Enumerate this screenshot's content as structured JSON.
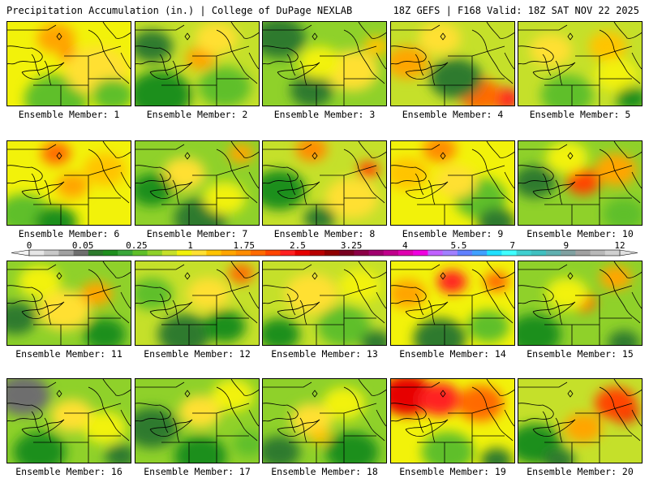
{
  "header": {
    "title_left": "Precipitation Accumulation (in.) | College of DuPage NEXLAB",
    "title_right": "18Z GEFS | F168 Valid: 18Z SAT NOV 22 2025"
  },
  "colorbar": {
    "labels": [
      "0",
      "0.05",
      "0.25",
      "1",
      "1.75",
      "2.5",
      "3.25",
      "4",
      "5.5",
      "7",
      "9",
      "12"
    ],
    "colors": [
      "#e6e6e6",
      "#c8c8c8",
      "#a0a0a0",
      "#6e6e6e",
      "#2d7a2d",
      "#1f8f1f",
      "#3aa63a",
      "#5fbf2a",
      "#8fd12a",
      "#c5e02a",
      "#f2f20a",
      "#ffe033",
      "#ffc400",
      "#ffa500",
      "#ff8c00",
      "#ff6a00",
      "#ff4500",
      "#ff2020",
      "#e60000",
      "#b80000",
      "#900000",
      "#780020",
      "#8b0046",
      "#a0006e",
      "#c0008c",
      "#e000b0",
      "#f000e0",
      "#c060ff",
      "#a080ff",
      "#6080ff",
      "#40a0ff",
      "#20e0ff",
      "#40ffff",
      "#40d0d0",
      "#40c0c0",
      "#60b0b0",
      "#80a0a0",
      "#a0a0a0",
      "#b8b8b8",
      "#d0d0d0"
    ]
  },
  "members": [
    {
      "label": "Ensemble Member: 1",
      "base": "#f2f20a",
      "blobs": [
        [
          "#ffa500",
          60,
          20,
          18
        ],
        [
          "#ff8c00",
          78,
          42,
          10
        ],
        [
          "#5fbf2a",
          60,
          95,
          30
        ],
        [
          "#ffe033",
          110,
          60,
          30
        ],
        [
          "#5fbf2a",
          130,
          90,
          20
        ]
      ]
    },
    {
      "label": "Ensemble Member: 2",
      "base": "#c5e02a",
      "blobs": [
        [
          "#ffa500",
          80,
          45,
          14
        ],
        [
          "#ffe033",
          100,
          20,
          20
        ],
        [
          "#1f8f1f",
          30,
          90,
          30
        ],
        [
          "#5fbf2a",
          110,
          80,
          25
        ],
        [
          "#2d7a2d",
          20,
          30,
          20
        ]
      ]
    },
    {
      "label": "Ensemble Member: 3",
      "base": "#8fd12a",
      "blobs": [
        [
          "#2d7a2d",
          20,
          20,
          25
        ],
        [
          "#2d7a2d",
          60,
          85,
          20
        ],
        [
          "#ffe033",
          110,
          60,
          25
        ],
        [
          "#f2f20a",
          70,
          50,
          20
        ],
        [
          "#ffc400",
          140,
          30,
          12
        ]
      ]
    },
    {
      "label": "Ensemble Member: 4",
      "base": "#c5e02a",
      "blobs": [
        [
          "#ff2020",
          140,
          95,
          14
        ],
        [
          "#ff6a00",
          110,
          90,
          20
        ],
        [
          "#2d7a2d",
          80,
          70,
          25
        ],
        [
          "#ffa500",
          20,
          50,
          20
        ],
        [
          "#ffe033",
          60,
          20,
          20
        ]
      ]
    },
    {
      "label": "Ensemble Member: 5",
      "base": "#c5e02a",
      "blobs": [
        [
          "#ffe033",
          40,
          35,
          20
        ],
        [
          "#ffc400",
          110,
          30,
          18
        ],
        [
          "#5fbf2a",
          60,
          90,
          25
        ],
        [
          "#f2f20a",
          120,
          65,
          20
        ],
        [
          "#1f8f1f",
          140,
          95,
          15
        ]
      ]
    },
    {
      "label": "Ensemble Member: 6",
      "base": "#f2f20a",
      "blobs": [
        [
          "#ff6a00",
          60,
          15,
          14
        ],
        [
          "#ffa500",
          80,
          55,
          15
        ],
        [
          "#5fbf2a",
          20,
          90,
          25
        ],
        [
          "#ffc400",
          120,
          35,
          20
        ],
        [
          "#1f8f1f",
          60,
          100,
          20
        ]
      ]
    },
    {
      "label": "Ensemble Member: 7",
      "base": "#8fd12a",
      "blobs": [
        [
          "#ffe033",
          60,
          40,
          20
        ],
        [
          "#ffa500",
          130,
          15,
          12
        ],
        [
          "#1f8f1f",
          20,
          60,
          20
        ],
        [
          "#2d7a2d",
          80,
          95,
          25
        ],
        [
          "#f2f20a",
          110,
          70,
          20
        ]
      ]
    },
    {
      "label": "Ensemble Member: 8",
      "base": "#c5e02a",
      "blobs": [
        [
          "#ff8c00",
          60,
          10,
          15
        ],
        [
          "#ff4500",
          130,
          35,
          10
        ],
        [
          "#1f8f1f",
          20,
          60,
          25
        ],
        [
          "#ffe033",
          110,
          70,
          25
        ],
        [
          "#2d7a2d",
          70,
          95,
          15
        ]
      ]
    },
    {
      "label": "Ensemble Member: 9",
      "base": "#f2f20a",
      "blobs": [
        [
          "#ff8c00",
          60,
          10,
          16
        ],
        [
          "#ffc400",
          20,
          40,
          20
        ],
        [
          "#5fbf2a",
          110,
          70,
          25
        ],
        [
          "#2d7a2d",
          130,
          100,
          18
        ],
        [
          "#ffe033",
          80,
          50,
          20
        ]
      ]
    },
    {
      "label": "Ensemble Member: 10",
      "base": "#8fd12a",
      "blobs": [
        [
          "#ff4500",
          80,
          50,
          16
        ],
        [
          "#ffa500",
          120,
          35,
          20
        ],
        [
          "#2d7a2d",
          20,
          50,
          20
        ],
        [
          "#f2f20a",
          60,
          20,
          20
        ],
        [
          "#5fbf2a",
          130,
          90,
          20
        ]
      ]
    },
    {
      "label": "Ensemble Member: 11",
      "base": "#8fd12a",
      "blobs": [
        [
          "#2d7a2d",
          10,
          70,
          20
        ],
        [
          "#ffe033",
          70,
          60,
          25
        ],
        [
          "#ffa500",
          110,
          40,
          15
        ],
        [
          "#1f8f1f",
          120,
          90,
          20
        ],
        [
          "#f2f20a",
          40,
          25,
          20
        ]
      ]
    },
    {
      "label": "Ensemble Member: 12",
      "base": "#c5e02a",
      "blobs": [
        [
          "#ff6a00",
          130,
          15,
          12
        ],
        [
          "#2d7a2d",
          60,
          90,
          25
        ],
        [
          "#1f8f1f",
          110,
          80,
          20
        ],
        [
          "#ffe033",
          90,
          40,
          20
        ],
        [
          "#5fbf2a",
          20,
          40,
          20
        ]
      ]
    },
    {
      "label": "Ensemble Member: 13",
      "base": "#c5e02a",
      "blobs": [
        [
          "#ffe033",
          60,
          40,
          25
        ],
        [
          "#5fbf2a",
          100,
          80,
          25
        ],
        [
          "#2d7a2d",
          140,
          100,
          15
        ],
        [
          "#f2f20a",
          120,
          30,
          20
        ],
        [
          "#1f8f1f",
          20,
          90,
          20
        ]
      ]
    },
    {
      "label": "Ensemble Member: 14",
      "base": "#f2f20a",
      "blobs": [
        [
          "#ff2020",
          75,
          25,
          14
        ],
        [
          "#ff6a00",
          130,
          25,
          12
        ],
        [
          "#2d7a2d",
          60,
          95,
          25
        ],
        [
          "#ffa500",
          20,
          40,
          18
        ],
        [
          "#5fbf2a",
          120,
          80,
          20
        ]
      ]
    },
    {
      "label": "Ensemble Member: 15",
      "base": "#8fd12a",
      "blobs": [
        [
          "#ff6a00",
          80,
          50,
          12
        ],
        [
          "#ffa500",
          120,
          20,
          15
        ],
        [
          "#1f8f1f",
          20,
          90,
          25
        ],
        [
          "#f2f20a",
          60,
          40,
          20
        ],
        [
          "#2d7a2d",
          130,
          100,
          15
        ]
      ]
    },
    {
      "label": "Ensemble Member: 16",
      "base": "#8fd12a",
      "blobs": [
        [
          "#6e6e6e",
          20,
          20,
          25
        ],
        [
          "#ffe033",
          80,
          45,
          20
        ],
        [
          "#1f8f1f",
          40,
          90,
          25
        ],
        [
          "#f2f20a",
          120,
          60,
          20
        ],
        [
          "#2d7a2d",
          140,
          95,
          15
        ]
      ]
    },
    {
      "label": "Ensemble Member: 17",
      "base": "#8fd12a",
      "blobs": [
        [
          "#ffe033",
          80,
          40,
          20
        ],
        [
          "#2d7a2d",
          20,
          60,
          25
        ],
        [
          "#1f8f1f",
          80,
          95,
          25
        ],
        [
          "#f2f20a",
          120,
          20,
          20
        ],
        [
          "#5fbf2a",
          140,
          80,
          15
        ]
      ]
    },
    {
      "label": "Ensemble Member: 18",
      "base": "#8fd12a",
      "blobs": [
        [
          "#ffe033",
          60,
          50,
          20
        ],
        [
          "#2d7a2d",
          20,
          90,
          20
        ],
        [
          "#1f8f1f",
          110,
          90,
          25
        ],
        [
          "#f2f20a",
          100,
          30,
          20
        ],
        [
          "#ffc400",
          70,
          70,
          10
        ]
      ]
    },
    {
      "label": "Ensemble Member: 19",
      "base": "#f2f20a",
      "blobs": [
        [
          "#e60000",
          20,
          20,
          25
        ],
        [
          "#ff2020",
          60,
          25,
          20
        ],
        [
          "#ff6a00",
          110,
          30,
          22
        ],
        [
          "#5fbf2a",
          70,
          90,
          25
        ],
        [
          "#2d7a2d",
          130,
          100,
          15
        ]
      ]
    },
    {
      "label": "Ensemble Member: 20",
      "base": "#c5e02a",
      "blobs": [
        [
          "#e60000",
          130,
          40,
          14
        ],
        [
          "#ff4500",
          120,
          30,
          20
        ],
        [
          "#1f8f1f",
          20,
          80,
          25
        ],
        [
          "#ffa500",
          80,
          60,
          18
        ],
        [
          "#2d7a2d",
          50,
          100,
          15
        ]
      ]
    }
  ]
}
